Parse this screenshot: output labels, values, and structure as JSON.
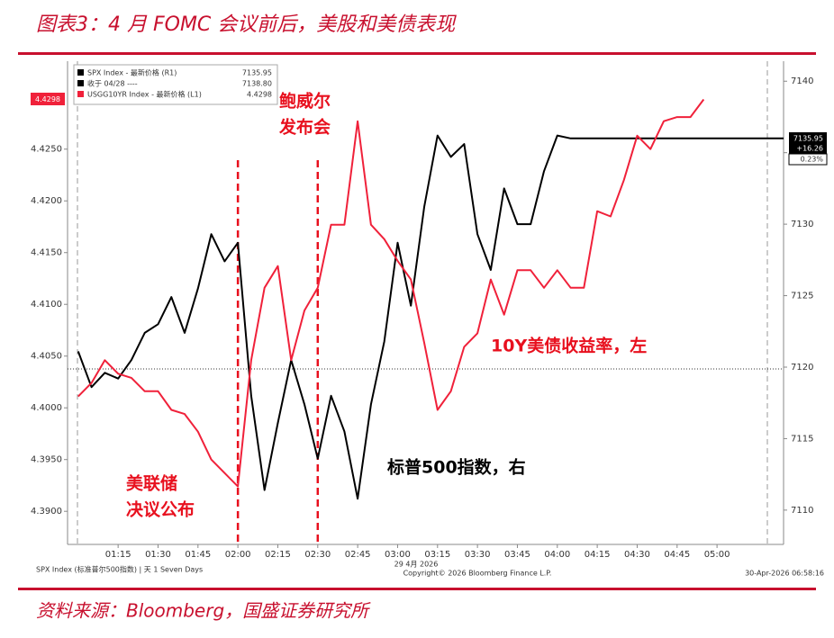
{
  "chart_data": {
    "type": "line",
    "title": "图表3：4 月 FOMC 会议前后，美股和美债表现",
    "source": "资料来源：Bloomberg，国盛证券研究所",
    "footer_left": "SPX Index (标准普尔500指数) | 天 1 Seven Days",
    "footer_date": "29 4月 2026",
    "footer_copyright": "Copyright© 2026 Bloomberg Finance L.P.",
    "footer_right": "30-Apr-2026 06:58:16",
    "legend": [
      {
        "name": "SPX Index - 最新价格 (R1)",
        "value": "7135.95",
        "color": "#000000"
      },
      {
        "name": "收于 04/28 ----",
        "value": "7138.80",
        "color": "#000000"
      },
      {
        "name": "USGG10YR Index - 最新价格 (L1)",
        "value": "4.4298",
        "color": "#f0213a"
      }
    ],
    "change": "+16.26",
    "change_pct": "0.23%",
    "xlim": [
      56,
      325
    ],
    "xticks": [
      {
        "value": 75,
        "label": "01:15"
      },
      {
        "value": 90,
        "label": "01:30"
      },
      {
        "value": 105,
        "label": "01:45"
      },
      {
        "value": 120,
        "label": "02:00"
      },
      {
        "value": 135,
        "label": "02:15"
      },
      {
        "value": 150,
        "label": "02:30"
      },
      {
        "value": 165,
        "label": "02:45"
      },
      {
        "value": 180,
        "label": "03:00"
      },
      {
        "value": 195,
        "label": "03:15"
      },
      {
        "value": 210,
        "label": "03:30"
      },
      {
        "value": 225,
        "label": "03:45"
      },
      {
        "value": 240,
        "label": "04:00"
      },
      {
        "value": 255,
        "label": "04:15"
      },
      {
        "value": 270,
        "label": "04:30"
      },
      {
        "value": 285,
        "label": "04:45"
      },
      {
        "value": 300,
        "label": "05:00"
      }
    ],
    "ylim": [
      4.3868,
      4.4335
    ],
    "yticks": [
      {
        "value": 4.39,
        "label": "4.3900"
      },
      {
        "value": 4.395,
        "label": "4.3950"
      },
      {
        "value": 4.4,
        "label": "4.4000"
      },
      {
        "value": 4.405,
        "label": "4.4050"
      },
      {
        "value": 4.41,
        "label": "4.4100"
      },
      {
        "value": 4.415,
        "label": "4.4150"
      },
      {
        "value": 4.42,
        "label": "4.4200"
      },
      {
        "value": 4.425,
        "label": "4.4250"
      }
    ],
    "y2lim": [
      7107.6,
      7141.4
    ],
    "y2ticks": [
      7110,
      7115,
      7120,
      7125,
      7130,
      7135,
      7140
    ],
    "vlines": [
      120,
      150
    ],
    "vline_color": "#e8101e",
    "x": [
      60,
      65,
      70,
      75,
      80,
      85,
      90,
      95,
      100,
      105,
      110,
      115,
      120,
      125,
      130,
      135,
      140,
      145,
      150,
      155,
      160,
      165,
      170,
      175,
      180,
      185,
      190,
      195,
      200,
      205,
      210,
      215,
      220,
      225,
      230,
      235,
      240,
      245,
      250,
      255,
      260,
      265,
      270,
      275,
      280,
      285,
      290,
      295,
      300,
      305,
      310,
      315,
      320,
      325
    ],
    "series": [
      {
        "name": "SPX Index",
        "color": "#000000",
        "axis": "y2",
        "values": [
          7121.1,
          7118.6,
          7119.6,
          7119.2,
          7120.5,
          7122.4,
          7123.0,
          7124.9,
          7122.4,
          7125.5,
          7129.3,
          7127.4,
          7128.7,
          7118.0,
          7111.4,
          7116.1,
          7120.5,
          7117.4,
          7113.6,
          7118.0,
          7115.5,
          7110.8,
          7117.4,
          7121.8,
          7128.7,
          7124.3,
          7131.2,
          7136.2,
          7134.7,
          7135.6,
          7129.3,
          7126.8,
          7132.5,
          7130.0,
          7130.0,
          7133.7,
          7136.2,
          7136.0,
          7136.0,
          7136.0,
          7136.0,
          7136.0,
          7136.0,
          7136.0,
          7136.0,
          7136.0,
          7136.0,
          7136.0,
          7136.0,
          7136.0,
          7136.0,
          7136.0,
          7136.0,
          7136.0
        ]
      },
      {
        "name": "USGG10YR Index",
        "color": "#f0213a",
        "axis": "y",
        "values": [
          4.4011,
          4.4024,
          4.4046,
          4.4033,
          4.4029,
          4.4016,
          4.4016,
          4.3998,
          4.3994,
          4.3977,
          4.395,
          4.3937,
          4.3924,
          4.4046,
          4.4116,
          4.4137,
          4.4046,
          4.4094,
          4.4116,
          4.4177,
          4.4177,
          4.4277,
          4.4177,
          4.4163,
          4.4142,
          4.4124,
          4.4063,
          4.3998,
          4.4016,
          4.4059,
          4.4072,
          4.4124,
          4.409,
          4.4133,
          4.4133,
          4.4116,
          4.4133,
          4.4116,
          4.4116,
          4.419,
          4.4185,
          4.422,
          4.4263,
          4.425,
          4.4277,
          4.4281,
          4.4281,
          4.4298,
          null,
          null,
          null,
          null,
          null,
          null
        ]
      }
    ],
    "annotations": [
      {
        "lines": [
          "鲍威尔",
          "发布会"
        ],
        "color": "#e8101e"
      },
      {
        "lines": [
          "10Y美债收益率，左"
        ],
        "color": "#e8101e"
      },
      {
        "lines": [
          "标普500指数，右"
        ],
        "color": "#000000"
      },
      {
        "lines": [
          "美联储",
          "决议公布"
        ],
        "color": "#e8101e"
      }
    ]
  }
}
